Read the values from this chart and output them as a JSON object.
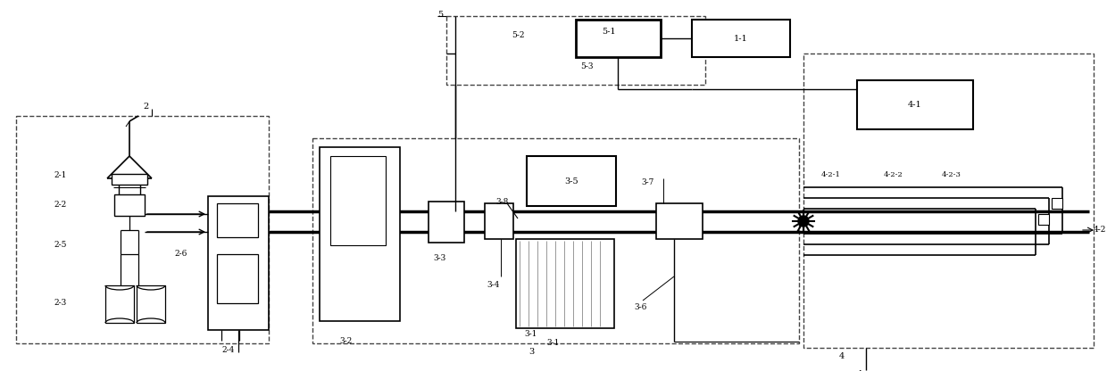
{
  "fw": 12.4,
  "fh": 4.16,
  "dpi": 100,
  "bg": "#ffffff",
  "lc": "#1a1a1a",
  "dc": "#555555",
  "labels": {
    "l11": "1-1",
    "l41": "4-1",
    "l51": "5-1",
    "l35": "3-5",
    "l2": "2",
    "l3": "3",
    "l4": "4",
    "l5": "5",
    "l52": "5-2",
    "l53": "5-3",
    "l21": "2-1",
    "l22": "2-2",
    "l23": "2-3",
    "l24": "2-4",
    "l25": "2-5",
    "l26": "2-6",
    "l31": "3-1",
    "l32": "3-2",
    "l33": "3-3",
    "l34": "3-4",
    "l36": "3-6",
    "l37": "3-7",
    "l38": "3-8",
    "l42": "4-2",
    "l421": "4-2-1",
    "l422": "4-2-2",
    "l423": "4-2-3"
  }
}
